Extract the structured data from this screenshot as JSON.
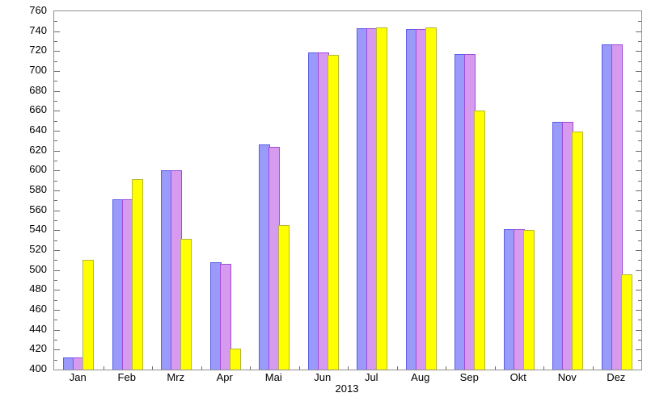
{
  "chart_data": {
    "type": "bar",
    "title": "",
    "xlabel": "2013",
    "ylabel": "",
    "ylim": [
      400,
      760
    ],
    "ytick_major_step": 20,
    "ytick_minor_step": 10,
    "grid": false,
    "legend": "none",
    "categories": [
      "Jan",
      "Feb",
      "Mrz",
      "Apr",
      "Mai",
      "Jun",
      "Jul",
      "Aug",
      "Sep",
      "Okt",
      "Nov",
      "Dez"
    ],
    "series": [
      {
        "name": "series-blue",
        "fill_color": "#999afa",
        "border_color": "#5d5de8",
        "values": [
          412,
          571,
          600,
          508,
          626,
          719,
          743,
          742,
          717,
          541,
          649,
          727
        ]
      },
      {
        "name": "series-purple",
        "fill_color": "#d69aee",
        "border_color": "#a04cd8",
        "values": [
          412,
          571,
          600,
          506,
          624,
          719,
          743,
          742,
          717,
          541,
          649,
          727
        ]
      },
      {
        "name": "series-yellow",
        "fill_color": "#ffff00",
        "border_color": "#b5b53a",
        "values": [
          510,
          591,
          531,
          421,
          545,
          716,
          744,
          744,
          660,
          540,
          639,
          496
        ]
      }
    ]
  },
  "colors": {
    "plot_border": "#909090",
    "tick": "#6a6a6a",
    "background": "#ffffff"
  }
}
